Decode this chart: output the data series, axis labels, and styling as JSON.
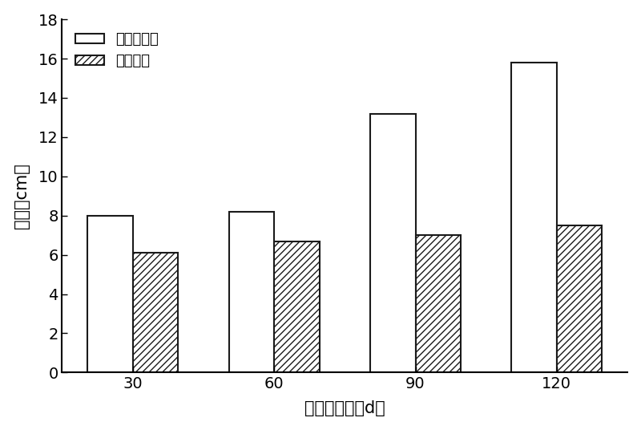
{
  "categories": [
    30,
    60,
    90,
    120
  ],
  "series1_label": "泥炭土基质",
  "series2_label": "河沙基质",
  "series1_values": [
    8.0,
    8.2,
    13.2,
    15.8
  ],
  "series2_values": [
    6.1,
    6.7,
    7.0,
    7.5
  ],
  "ylabel": "叶长（cm）",
  "xlabel": "移栽后天数（d）",
  "ylim": [
    0,
    18
  ],
  "yticks": [
    0,
    2,
    4,
    6,
    8,
    10,
    12,
    14,
    16,
    18
  ],
  "bar_width": 0.32,
  "bar1_color": "#ffffff",
  "bar1_edgecolor": "#1a1a1a",
  "bar2_color": "#ffffff",
  "bar2_edgecolor": "#1a1a1a",
  "hatch2": "////",
  "background_color": "#ffffff",
  "legend_fontsize": 13,
  "axis_fontsize": 15,
  "tick_fontsize": 14,
  "linewidth": 1.5
}
